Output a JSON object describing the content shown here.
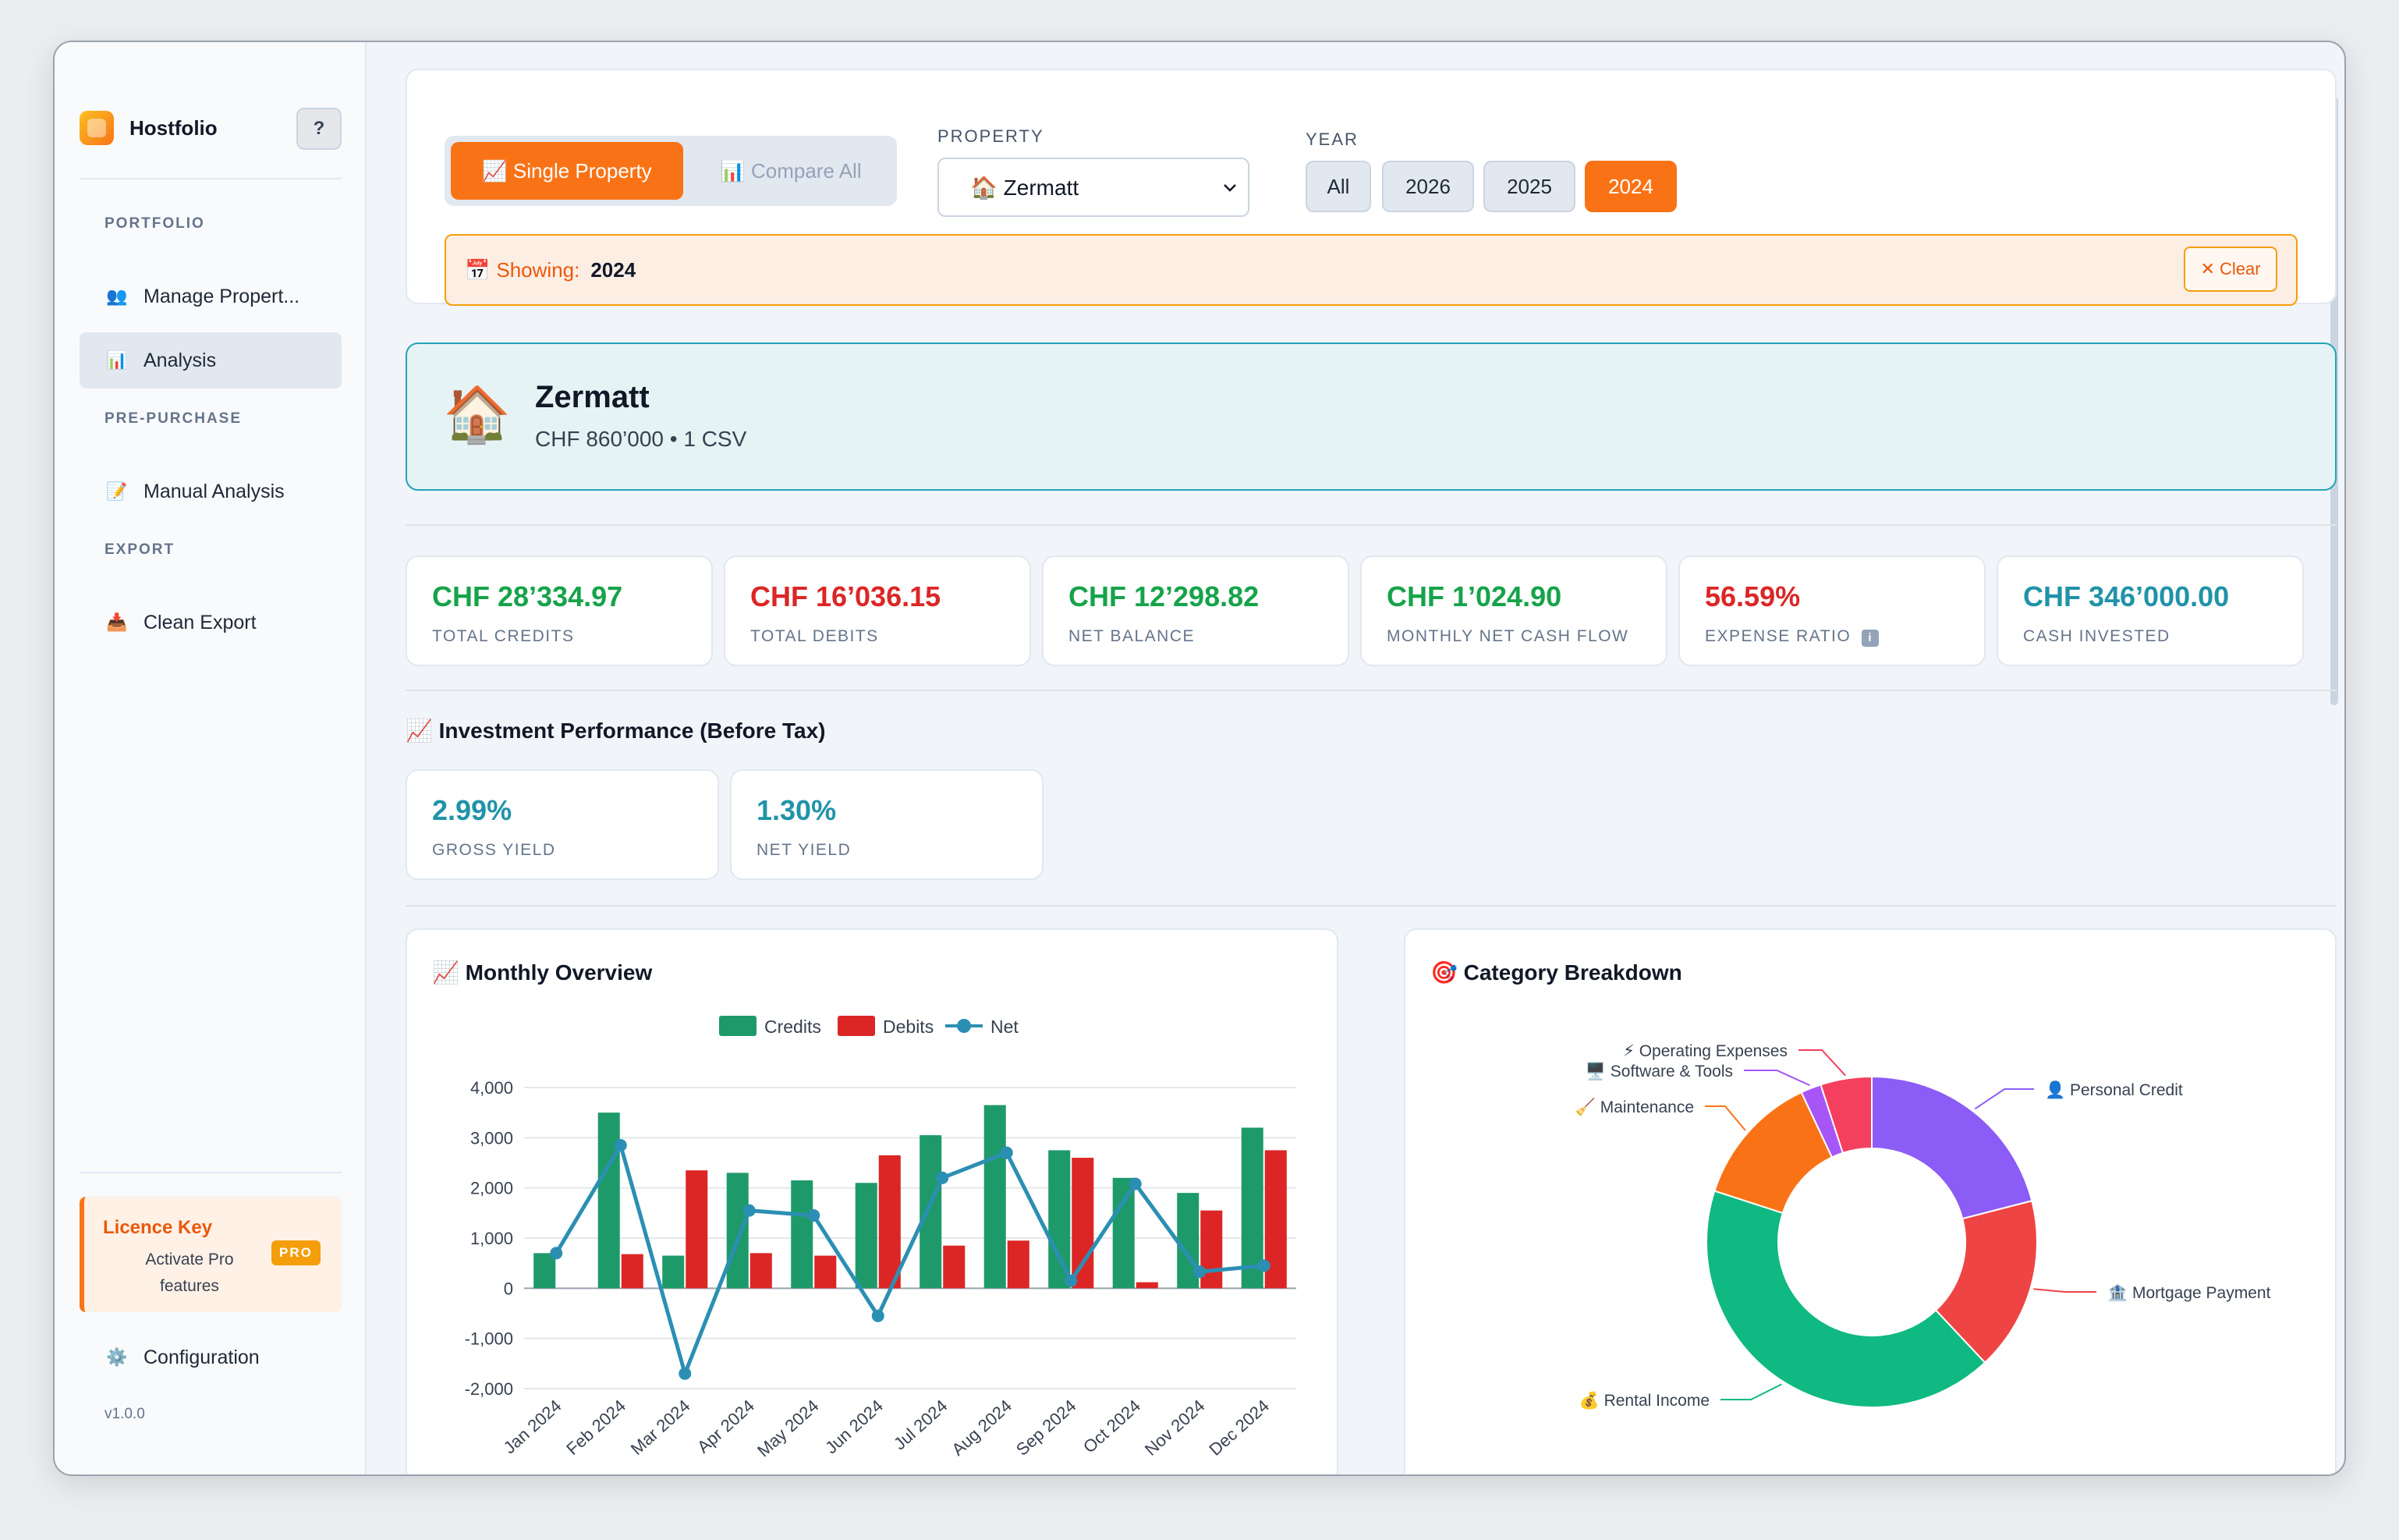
{
  "app": {
    "name": "Hostfolio",
    "help_label": "?",
    "version": "v1.0.0"
  },
  "sidebar": {
    "sections": [
      {
        "title": "PORTFOLIO",
        "items": [
          {
            "label": "Manage Propert...",
            "icon": "people-icon",
            "glyph": "👥",
            "active": false
          },
          {
            "label": "Analysis",
            "icon": "bar-chart-icon",
            "glyph": "📊",
            "active": true
          }
        ]
      },
      {
        "title": "PRE-PURCHASE",
        "items": [
          {
            "label": "Manual Analysis",
            "icon": "memo-icon",
            "glyph": "📝",
            "active": false
          }
        ]
      },
      {
        "title": "EXPORT",
        "items": [
          {
            "label": "Clean Export",
            "icon": "export-tray-icon",
            "glyph": "📥",
            "active": false
          }
        ]
      }
    ],
    "licence": {
      "title": "Licence Key",
      "subtitle": "Activate Pro features",
      "badge": "PRO"
    },
    "configuration": {
      "label": "Configuration",
      "icon": "gear-icon",
      "glyph": "⚙️"
    }
  },
  "filters": {
    "mode_single": "📈 Single Property",
    "mode_compare": "📊 Compare All",
    "property_label": "PROPERTY",
    "property_value": "🏠 Zermatt",
    "year_label": "YEAR",
    "years": [
      "All",
      "2026",
      "2025",
      "2024"
    ],
    "active_year": "2024",
    "showing_icon": "📅",
    "showing_label": "Showing:",
    "showing_value": "2024",
    "clear_label": "✕ Clear"
  },
  "property": {
    "icon": "🏠",
    "name": "Zermatt",
    "subtitle": "CHF 860’000 • 1 CSV"
  },
  "kpis": [
    {
      "value": "CHF 28’334.97",
      "label": "TOTAL CREDITS",
      "color": "#16a34a"
    },
    {
      "value": "CHF 16’036.15",
      "label": "TOTAL DEBITS",
      "color": "#dc2626"
    },
    {
      "value": "CHF 12’298.82",
      "label": "NET BALANCE",
      "color": "#16a34a"
    },
    {
      "value": "CHF 1’024.90",
      "label": "MONTHLY NET CASH FLOW",
      "color": "#16a34a"
    },
    {
      "value": "56.59%",
      "label": "EXPENSE RATIO",
      "color": "#dc2626",
      "info": "i"
    },
    {
      "value": "CHF 346’000.00",
      "label": "CASH INVESTED",
      "color": "#2093a8"
    }
  ],
  "investment": {
    "title": "📈 Investment Performance (Before Tax)",
    "yields": [
      {
        "value": "2.99%",
        "label": "GROSS YIELD"
      },
      {
        "value": "1.30%",
        "label": "NET YIELD"
      }
    ]
  },
  "monthly": {
    "title": "📈 Monthly Overview",
    "legend": [
      "Credits",
      "Debits",
      "Net"
    ]
  },
  "category": {
    "title": "🎯 Category Breakdown"
  },
  "chart_data": [
    {
      "type": "bar",
      "title": "📈 Monthly Overview",
      "categories": [
        "Jan 2024",
        "Feb 2024",
        "Mar 2024",
        "Apr 2024",
        "May 2024",
        "Jun 2024",
        "Jul 2024",
        "Aug 2024",
        "Sep 2024",
        "Oct 2024",
        "Nov 2024",
        "Dec 2024"
      ],
      "series": [
        {
          "name": "Credits",
          "type": "bar",
          "color": "#1e9a6a",
          "values": [
            700,
            3500,
            650,
            2300,
            2150,
            2100,
            3050,
            3650,
            2750,
            2200,
            1900,
            3200
          ]
        },
        {
          "name": "Debits",
          "type": "bar",
          "color": "#dc2626",
          "values": [
            0,
            680,
            2350,
            700,
            650,
            2650,
            850,
            950,
            2600,
            120,
            1550,
            2750
          ]
        },
        {
          "name": "Net",
          "type": "line",
          "color": "#2b8fb3",
          "values": [
            700,
            2850,
            -1700,
            1550,
            1450,
            -550,
            2200,
            2700,
            150,
            2080,
            330,
            450
          ]
        }
      ],
      "yticks": [
        "4,000",
        "3,000",
        "2,000",
        "1,000",
        "0",
        "-1,000",
        "-2,000"
      ],
      "ylim": [
        -2000,
        4000
      ],
      "legend": "top-center"
    },
    {
      "type": "pie",
      "title": "🎯 Category Breakdown",
      "donut": true,
      "slices": [
        {
          "label": "👤 Personal Credit",
          "value": 21,
          "color": "#8b5cf6"
        },
        {
          "label": "🏦 Mortgage Payment",
          "value": 17,
          "color": "#ef4444"
        },
        {
          "label": "💰 Rental Income",
          "value": 42,
          "color": "#10b981"
        },
        {
          "label": "🧹 Maintenance",
          "value": 13,
          "color": "#f97316"
        },
        {
          "label": "🖥️ Software & Tools",
          "value": 2,
          "color": "#a855f7"
        },
        {
          "label": "⚡ Operating Expenses",
          "value": 5,
          "color": "#f43f5e"
        }
      ]
    }
  ]
}
